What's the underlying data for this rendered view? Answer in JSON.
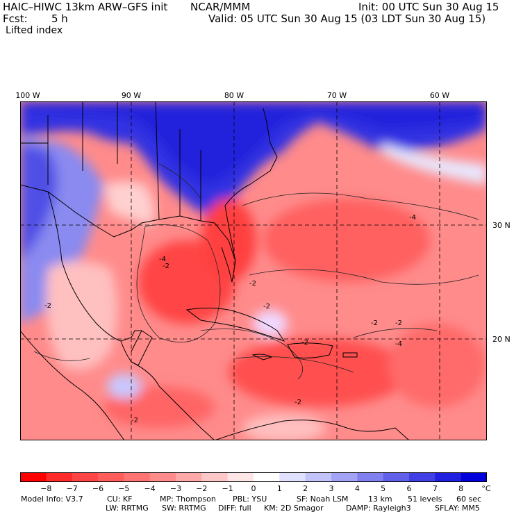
{
  "header": {
    "model_title": "HAIC–HIWC 13km ARW–GFS init",
    "org": "NCAR/MMM",
    "init": "Init: 00 UTC Sun 30 Aug 15",
    "fcst_label": "Fcst:",
    "fcst_value": "5 h",
    "valid": "Valid: 05 UTC Sun 30 Aug 15 (03 LDT Sun 30 Aug 15)",
    "field": "Lifted index"
  },
  "axes": {
    "lon_labels": [
      "100 W",
      "90 W",
      "80 W",
      "70 W",
      "60 W"
    ],
    "lat_labels": [
      "30 N",
      "20 N"
    ]
  },
  "contour_labels": [
    "-2",
    "-4",
    "-2",
    "-4",
    "-2",
    "-2",
    "-2",
    "-2",
    "-4",
    "-2",
    "-2",
    "-2"
  ],
  "colorbar": {
    "ticks": [
      "−8",
      "−7",
      "−6",
      "−5",
      "−4",
      "−3",
      "−2",
      "−1",
      "0",
      "1",
      "2",
      "3",
      "4",
      "5",
      "6",
      "7",
      "8"
    ],
    "unit": "°C",
    "colors": [
      "#ff0000",
      "#ff2a2a",
      "#ff4545",
      "#ff5c5c",
      "#ff7373",
      "#ff8b8b",
      "#ffa8a8",
      "#ffc8c8",
      "#ffe6e6",
      "#ffffff",
      "#e0e0ff",
      "#c3c3fb",
      "#a3a3f5",
      "#8080ee",
      "#6060ea",
      "#4040e4",
      "#2020e0",
      "#0000dc"
    ]
  },
  "footer": {
    "model_info": "Model Info: V3.7",
    "cu": "CU: KF",
    "mp": "MP: Thompson",
    "pbl": "PBL: YSU",
    "sf": "SF: Noah LSM",
    "res": "13 km",
    "levels": "51 levels",
    "dt": "60 sec",
    "lw": "LW: RRTMG",
    "sw": "SW: RRTMG",
    "diff": "DIFF: full",
    "km": "KM: 2D Smagor",
    "damp": "DAMP: Rayleigh3",
    "sflay": "SFLAY: MM5"
  }
}
